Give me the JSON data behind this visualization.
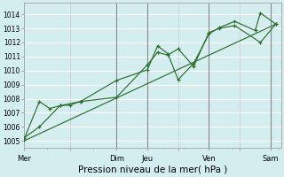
{
  "xlabel": "Pression niveau de la mer( hPa )",
  "bg_color": "#d4eef0",
  "grid_color": "#c0dfe0",
  "line_color": "#2d6e2d",
  "marker_color": "#2d6e2d",
  "ylim": [
    1004.5,
    1014.8
  ],
  "yticks": [
    1005,
    1006,
    1007,
    1008,
    1009,
    1010,
    1011,
    1012,
    1013,
    1014
  ],
  "day_labels": [
    "Mer",
    "",
    "Dim",
    "Jeu",
    "",
    "Ven",
    "",
    "Sam"
  ],
  "day_positions": [
    0,
    4.5,
    9,
    12,
    15,
    18,
    21,
    24
  ],
  "vline_positions": [
    9,
    12,
    18,
    24
  ],
  "xlim": [
    0,
    25
  ],
  "series1_x": [
    0,
    1.5,
    2.5,
    3.5,
    4.5,
    5.5,
    9,
    12,
    13,
    14,
    15,
    16.5,
    18,
    19,
    20.5,
    23,
    24.5
  ],
  "series1_y": [
    1005.1,
    1007.8,
    1007.3,
    1007.5,
    1007.55,
    1007.8,
    1008.1,
    1010.4,
    1011.3,
    1011.1,
    1011.55,
    1010.3,
    1012.7,
    1013.0,
    1013.2,
    1012.0,
    1013.3
  ],
  "series2_x": [
    0,
    1.5,
    3.5,
    5.5,
    9,
    12,
    13,
    14,
    15,
    16.5,
    18,
    19,
    20.5,
    22.5,
    23,
    24.5
  ],
  "series2_y": [
    1005.2,
    1006.0,
    1007.5,
    1007.8,
    1009.3,
    1010.05,
    1011.75,
    1011.2,
    1009.35,
    1010.5,
    1012.6,
    1013.05,
    1013.5,
    1012.85,
    1014.1,
    1013.3
  ],
  "trend_x": [
    0,
    24.5
  ],
  "trend_y": [
    1005.0,
    1013.3
  ],
  "xlabel_fontsize": 7.5,
  "ytick_fontsize": 5.5,
  "xtick_fontsize": 6.0
}
